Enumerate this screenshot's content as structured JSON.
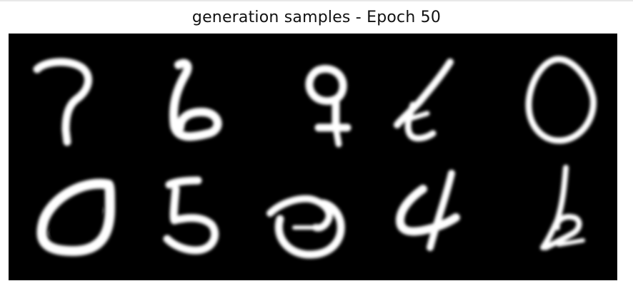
{
  "figure": {
    "title": "generation samples - Epoch 50",
    "background_color": "#000000",
    "stroke_color": "#ffffff",
    "grid": {
      "rows": 2,
      "cols": 5
    },
    "samples": [
      {
        "row": 1,
        "col": 1,
        "depicts": "7"
      },
      {
        "row": 1,
        "col": 2,
        "depicts": "6"
      },
      {
        "row": 1,
        "col": 3,
        "depicts": "9"
      },
      {
        "row": 1,
        "col": 4,
        "depicts": "1"
      },
      {
        "row": 1,
        "col": 5,
        "depicts": "0"
      },
      {
        "row": 2,
        "col": 1,
        "depicts": "0"
      },
      {
        "row": 2,
        "col": 2,
        "depicts": "5"
      },
      {
        "row": 2,
        "col": 3,
        "depicts": "3"
      },
      {
        "row": 2,
        "col": 4,
        "depicts": "4"
      },
      {
        "row": 2,
        "col": 5,
        "depicts": "6"
      }
    ]
  }
}
